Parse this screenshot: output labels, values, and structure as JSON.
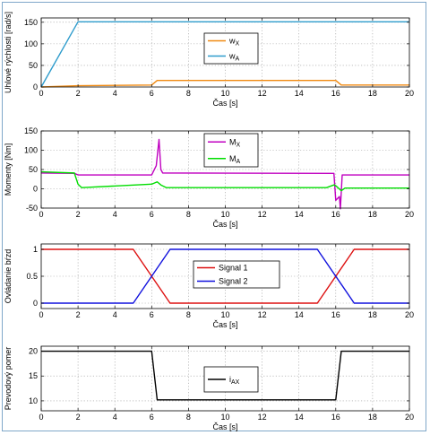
{
  "chart_data": [
    {
      "type": "line",
      "xlabel": "Čas [s]",
      "ylabel": "Uhlové rýchlosti [rad/s]",
      "xlim": [
        0,
        20
      ],
      "ylim": [
        0,
        160
      ],
      "xticks": [
        0,
        2,
        4,
        6,
        8,
        10,
        12,
        14,
        16,
        18,
        20
      ],
      "yticks": [
        0,
        50,
        100,
        150
      ],
      "grid": true,
      "legend_position": "top-center",
      "series": [
        {
          "name": "w_X",
          "label_main": "w",
          "label_sub": "X",
          "color": "#f08a12",
          "x": [
            0,
            2,
            6.0,
            6.3,
            16.0,
            16.3,
            20
          ],
          "y": [
            0,
            3,
            4.6,
            15.2,
            15.2,
            4.6,
            4.6
          ]
        },
        {
          "name": "w_A",
          "label_main": "w",
          "label_sub": "A",
          "color": "#2f9ccc",
          "x": [
            0,
            2,
            20
          ],
          "y": [
            0,
            151,
            151
          ]
        }
      ]
    },
    {
      "type": "line",
      "xlabel": "Čas [s]",
      "ylabel": "Momenty [Nm]",
      "xlim": [
        0,
        20
      ],
      "ylim": [
        -50,
        150
      ],
      "xticks": [
        0,
        2,
        4,
        6,
        8,
        10,
        12,
        14,
        16,
        18,
        20
      ],
      "yticks": [
        -50,
        0,
        50,
        100,
        150
      ],
      "grid": true,
      "legend_position": "top-center",
      "series": [
        {
          "name": "M_X",
          "label_main": "M",
          "label_sub": "X",
          "color": "#c000c0",
          "x": [
            0,
            1.8,
            2.0,
            6.0,
            6.25,
            6.4,
            6.5,
            6.6,
            15.9,
            16.0,
            16.2,
            16.25,
            16.35,
            16.5,
            20
          ],
          "y": [
            41,
            40,
            36,
            36,
            60,
            128,
            50,
            41,
            40,
            -30,
            -20,
            -52,
            36,
            36,
            36
          ]
        },
        {
          "name": "M_A",
          "label_main": "M",
          "label_sub": "A",
          "color": "#00dd00",
          "x": [
            0,
            1.8,
            2.0,
            2.2,
            6.0,
            6.3,
            6.5,
            6.8,
            15.5,
            15.9,
            16.0,
            16.3,
            16.5,
            20
          ],
          "y": [
            44,
            41,
            12,
            3,
            12,
            18,
            10,
            3,
            3,
            10,
            8,
            -5,
            2,
            2
          ]
        }
      ]
    },
    {
      "type": "line",
      "xlabel": "Čas [s]",
      "ylabel": "Ovládanie bŕzd",
      "xlim": [
        0,
        20
      ],
      "ylim": [
        -0.1,
        1.1
      ],
      "xticks": [
        0,
        2,
        4,
        6,
        8,
        10,
        12,
        14,
        16,
        18,
        20
      ],
      "yticks": [
        0,
        0.5,
        1
      ],
      "grid": true,
      "legend_position": "center",
      "series": [
        {
          "name": "Signal 1",
          "label_main": "Signal 1",
          "color": "#dd1111",
          "x": [
            0,
            5,
            7,
            15,
            17,
            20
          ],
          "y": [
            1,
            1,
            0,
            0,
            1,
            1
          ]
        },
        {
          "name": "Signal 2",
          "label_main": "Signal 2",
          "color": "#1111dd",
          "x": [
            0,
            5,
            7,
            15,
            17,
            20
          ],
          "y": [
            0,
            0,
            1,
            1,
            0,
            0
          ]
        }
      ]
    },
    {
      "type": "line",
      "xlabel": "Čas [s]",
      "ylabel": "Prevodový pomer",
      "xlim": [
        0,
        20
      ],
      "ylim": [
        8,
        21
      ],
      "xticks": [
        0,
        2,
        4,
        6,
        8,
        10,
        12,
        14,
        16,
        18,
        20
      ],
      "yticks": [
        10,
        15,
        20
      ],
      "grid": true,
      "legend_position": "center",
      "series": [
        {
          "name": "i_AX",
          "label_main": "i",
          "label_sub": "AX",
          "color": "#000000",
          "x": [
            0,
            6.0,
            6.3,
            16.0,
            16.3,
            20
          ],
          "y": [
            20,
            20,
            10.2,
            10.2,
            20,
            20
          ]
        }
      ]
    }
  ]
}
